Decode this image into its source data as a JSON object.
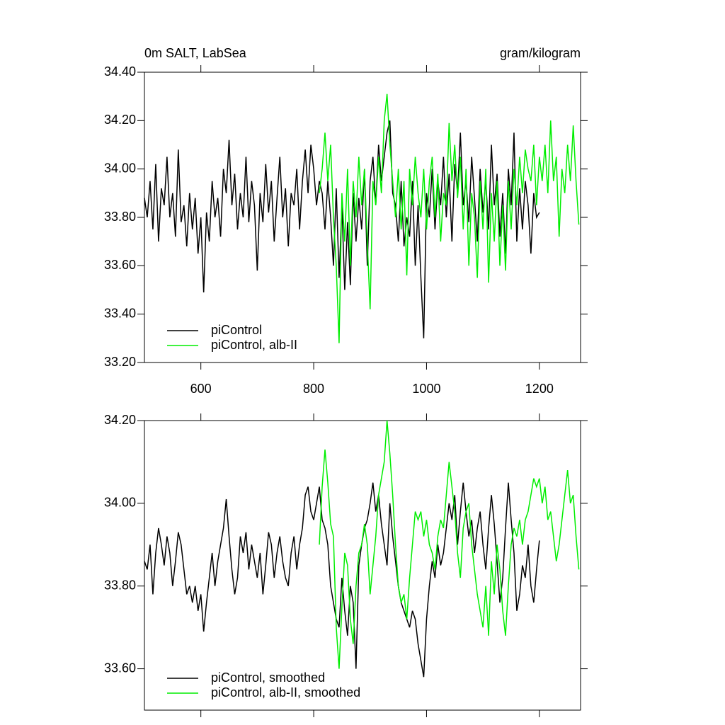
{
  "chart_data": [
    {
      "type": "line",
      "title": "0m SALT, LabSea",
      "subtitle": "gram/kilogram",
      "xlim": [
        500,
        1273
      ],
      "xticks": [
        600,
        800,
        1000,
        1200
      ],
      "ylim": [
        33.2,
        34.4
      ],
      "yticks": [
        {
          "value": 33.2,
          "label": "33.20"
        },
        {
          "value": 33.4,
          "label": "33.40"
        },
        {
          "value": 33.6,
          "label": "33.60"
        },
        {
          "value": 33.8,
          "label": "33.80"
        },
        {
          "value": 34.0,
          "label": "34.00"
        },
        {
          "value": 34.2,
          "label": "34.20"
        },
        {
          "value": 34.4,
          "label": "34.40"
        }
      ],
      "legend": "lower left",
      "series": [
        {
          "name": "piControl",
          "color": "#000000",
          "x": [
            500,
            505,
            510,
            515,
            520,
            525,
            530,
            535,
            540,
            545,
            550,
            555,
            560,
            565,
            570,
            575,
            580,
            585,
            590,
            595,
            600,
            605,
            610,
            615,
            620,
            625,
            630,
            635,
            640,
            645,
            650,
            655,
            660,
            665,
            670,
            675,
            680,
            685,
            690,
            695,
            700,
            705,
            710,
            715,
            720,
            725,
            730,
            735,
            740,
            745,
            750,
            755,
            760,
            765,
            770,
            775,
            780,
            785,
            790,
            795,
            800,
            805,
            810,
            815,
            820,
            825,
            830,
            835,
            840,
            845,
            850,
            855,
            860,
            865,
            870,
            875,
            880,
            885,
            890,
            895,
            900,
            905,
            910,
            915,
            920,
            925,
            930,
            935,
            940,
            945,
            950,
            955,
            960,
            965,
            970,
            975,
            980,
            985,
            990,
            995,
            1000,
            1005,
            1010,
            1015,
            1020,
            1025,
            1030,
            1035,
            1040,
            1045,
            1050,
            1055,
            1060,
            1065,
            1070,
            1075,
            1080,
            1085,
            1090,
            1095,
            1100,
            1105,
            1110,
            1115,
            1120,
            1125,
            1130,
            1135,
            1140,
            1145,
            1150,
            1155,
            1160,
            1165,
            1170,
            1175,
            1180,
            1185,
            1190,
            1195,
            1200
          ],
          "values": [
            33.88,
            33.8,
            33.95,
            33.75,
            34.02,
            33.7,
            33.92,
            33.85,
            34.05,
            33.8,
            33.9,
            33.72,
            34.08,
            33.78,
            33.85,
            33.68,
            33.9,
            33.75,
            33.88,
            33.65,
            33.8,
            33.49,
            33.82,
            33.7,
            33.95,
            33.8,
            33.88,
            33.72,
            34.0,
            33.9,
            34.12,
            33.85,
            33.98,
            33.75,
            33.9,
            33.8,
            34.05,
            33.78,
            33.95,
            33.85,
            33.58,
            33.9,
            33.78,
            34.02,
            33.82,
            33.95,
            33.7,
            33.88,
            34.05,
            33.8,
            33.92,
            33.68,
            33.9,
            33.85,
            34.0,
            33.75,
            33.95,
            34.08,
            33.9,
            34.1,
            34.0,
            33.85,
            33.95,
            33.9,
            33.75,
            33.95,
            33.8,
            33.6,
            33.92,
            33.55,
            33.85,
            33.5,
            33.78,
            33.52,
            33.9,
            33.7,
            33.88,
            33.75,
            34.0,
            33.6,
            33.95,
            34.05,
            33.85,
            34.1,
            33.95,
            34.05,
            34.15,
            34.2,
            33.9,
            33.85,
            33.7,
            33.95,
            33.68,
            33.8,
            33.72,
            33.95,
            33.6,
            33.85,
            33.55,
            33.3,
            33.9,
            33.8,
            34.0,
            33.75,
            33.95,
            33.85,
            34.05,
            33.8,
            33.98,
            33.7,
            34.02,
            33.9,
            34.15,
            33.85,
            33.95,
            33.78,
            34.05,
            33.88,
            33.7,
            34.0,
            33.82,
            33.95,
            33.75,
            34.1,
            33.85,
            33.98,
            33.72,
            33.9,
            33.65,
            34.0,
            33.85,
            34.15,
            33.7,
            33.92,
            33.75,
            33.95,
            33.85,
            33.65,
            33.9,
            33.8,
            33.82
          ]
        },
        {
          "name": "piControl, alb-II",
          "color": "#00ee00",
          "x": [
            810,
            815,
            820,
            825,
            830,
            835,
            840,
            845,
            850,
            855,
            860,
            865,
            870,
            875,
            880,
            885,
            890,
            895,
            900,
            905,
            910,
            915,
            920,
            925,
            930,
            935,
            940,
            945,
            950,
            955,
            960,
            965,
            970,
            975,
            980,
            985,
            990,
            995,
            1000,
            1005,
            1010,
            1015,
            1020,
            1025,
            1030,
            1035,
            1040,
            1045,
            1050,
            1055,
            1060,
            1065,
            1070,
            1075,
            1080,
            1085,
            1090,
            1095,
            1100,
            1105,
            1110,
            1115,
            1120,
            1125,
            1130,
            1135,
            1140,
            1145,
            1150,
            1155,
            1160,
            1165,
            1170,
            1175,
            1180,
            1185,
            1190,
            1195,
            1200,
            1205,
            1210,
            1215,
            1220,
            1225,
            1230,
            1235,
            1240,
            1245,
            1250,
            1255,
            1260,
            1265,
            1270
          ],
          "values": [
            33.9,
            34.0,
            34.15,
            33.95,
            34.1,
            33.8,
            33.6,
            33.28,
            33.9,
            33.7,
            34.0,
            33.6,
            33.95,
            33.8,
            34.05,
            33.85,
            34.0,
            33.7,
            33.42,
            33.95,
            33.85,
            34.05,
            33.9,
            34.2,
            34.31,
            34.1,
            33.95,
            33.8,
            34.0,
            33.75,
            33.95,
            33.56,
            34.0,
            33.85,
            34.05,
            33.9,
            33.8,
            34.0,
            33.75,
            33.95,
            34.05,
            33.8,
            33.98,
            33.7,
            33.9,
            33.85,
            34.19,
            33.95,
            34.1,
            33.88,
            34.05,
            33.75,
            34.0,
            33.6,
            33.9,
            33.8,
            33.55,
            33.95,
            33.75,
            34.0,
            33.53,
            33.9,
            33.7,
            33.95,
            33.6,
            33.85,
            33.58,
            33.95,
            33.75,
            34.0,
            33.85,
            34.05,
            33.9,
            34.08,
            34.0,
            33.95,
            34.1,
            33.85,
            34.05,
            33.95,
            34.1,
            33.9,
            34.2,
            33.95,
            34.05,
            33.72,
            34.0,
            33.9,
            34.1,
            33.95,
            34.18,
            33.95,
            33.77
          ]
        }
      ]
    },
    {
      "type": "line",
      "xlim": [
        500,
        1273
      ],
      "xticks": [
        600,
        800,
        1000,
        1200
      ],
      "xtick_labels": false,
      "ylim": [
        33.5,
        34.2
      ],
      "yticks": [
        {
          "value": 33.6,
          "label": "33.60"
        },
        {
          "value": 33.8,
          "label": "33.80"
        },
        {
          "value": 34.0,
          "label": "34.00"
        },
        {
          "value": 34.2,
          "label": "34.20"
        }
      ],
      "legend": "lower left",
      "series": [
        {
          "name": "piControl, smoothed",
          "color": "#000000",
          "x": [
            500,
            505,
            510,
            515,
            520,
            525,
            530,
            535,
            540,
            545,
            550,
            555,
            560,
            565,
            570,
            575,
            580,
            585,
            590,
            595,
            600,
            605,
            610,
            615,
            620,
            625,
            630,
            635,
            640,
            645,
            650,
            655,
            660,
            665,
            670,
            675,
            680,
            685,
            690,
            695,
            700,
            705,
            710,
            715,
            720,
            725,
            730,
            735,
            740,
            745,
            750,
            755,
            760,
            765,
            770,
            775,
            780,
            785,
            790,
            795,
            800,
            805,
            810,
            815,
            820,
            825,
            830,
            835,
            840,
            845,
            850,
            855,
            860,
            865,
            870,
            875,
            880,
            885,
            890,
            895,
            900,
            905,
            910,
            915,
            920,
            925,
            930,
            935,
            940,
            945,
            950,
            955,
            960,
            965,
            970,
            975,
            980,
            985,
            990,
            995,
            1000,
            1005,
            1010,
            1015,
            1020,
            1025,
            1030,
            1035,
            1040,
            1045,
            1050,
            1055,
            1060,
            1065,
            1070,
            1075,
            1080,
            1085,
            1090,
            1095,
            1100,
            1105,
            1110,
            1115,
            1120,
            1125,
            1130,
            1135,
            1140,
            1145,
            1150,
            1155,
            1160,
            1165,
            1170,
            1175,
            1180,
            1185,
            1190,
            1195,
            1200
          ],
          "values": [
            33.86,
            33.84,
            33.9,
            33.78,
            33.88,
            33.94,
            33.9,
            33.85,
            33.92,
            33.88,
            33.8,
            33.86,
            33.93,
            33.9,
            33.84,
            33.78,
            33.8,
            33.76,
            33.8,
            33.74,
            33.78,
            33.69,
            33.76,
            33.82,
            33.88,
            33.8,
            33.86,
            33.9,
            33.94,
            34.01,
            33.92,
            33.84,
            33.78,
            33.82,
            33.92,
            33.88,
            33.93,
            33.84,
            33.9,
            33.86,
            33.82,
            33.88,
            33.78,
            33.85,
            33.93,
            33.9,
            33.82,
            33.88,
            33.92,
            33.86,
            33.82,
            33.8,
            33.88,
            33.92,
            33.84,
            33.9,
            33.94,
            34.02,
            34.04,
            33.98,
            33.96,
            34.0,
            34.04,
            33.96,
            33.94,
            33.9,
            33.8,
            33.76,
            33.72,
            33.7,
            33.82,
            33.74,
            33.68,
            33.8,
            33.76,
            33.6,
            33.85,
            33.9,
            33.94,
            33.96,
            34.0,
            34.05,
            33.98,
            34.02,
            33.95,
            33.9,
            33.85,
            34.0,
            33.92,
            33.86,
            33.8,
            33.76,
            33.74,
            33.72,
            33.7,
            33.74,
            33.72,
            33.66,
            33.62,
            33.58,
            33.72,
            33.8,
            33.86,
            33.82,
            33.9,
            33.85,
            33.88,
            33.94,
            34.0,
            33.96,
            34.02,
            33.9,
            33.98,
            34.05,
            33.98,
            33.92,
            33.96,
            33.88,
            33.94,
            33.98,
            33.9,
            33.84,
            33.94,
            34.02,
            33.95,
            33.86,
            33.76,
            33.82,
            33.94,
            34.05,
            33.96,
            33.88,
            33.74,
            33.78,
            33.85,
            33.82,
            33.9,
            33.8,
            33.76,
            33.84,
            33.91
          ]
        },
        {
          "name": "piControl, alb-II, smoothed",
          "color": "#00ee00",
          "x": [
            810,
            815,
            820,
            825,
            830,
            835,
            840,
            845,
            850,
            855,
            860,
            865,
            870,
            875,
            880,
            885,
            890,
            895,
            900,
            905,
            910,
            915,
            920,
            925,
            930,
            935,
            940,
            945,
            950,
            955,
            960,
            965,
            970,
            975,
            980,
            985,
            990,
            995,
            1000,
            1005,
            1010,
            1015,
            1020,
            1025,
            1030,
            1035,
            1040,
            1045,
            1050,
            1055,
            1060,
            1065,
            1070,
            1075,
            1080,
            1085,
            1090,
            1095,
            1100,
            1105,
            1110,
            1115,
            1120,
            1125,
            1130,
            1135,
            1140,
            1145,
            1150,
            1155,
            1160,
            1165,
            1170,
            1175,
            1180,
            1185,
            1190,
            1195,
            1200,
            1205,
            1210,
            1215,
            1220,
            1225,
            1230,
            1235,
            1240,
            1245,
            1250,
            1255,
            1260,
            1265,
            1270
          ],
          "values": [
            33.9,
            34.04,
            34.13,
            34.05,
            33.95,
            33.92,
            33.7,
            33.6,
            33.75,
            33.88,
            33.85,
            33.72,
            33.66,
            33.8,
            33.88,
            33.9,
            33.95,
            33.9,
            33.78,
            33.85,
            33.92,
            34.02,
            34.06,
            34.1,
            34.2,
            34.12,
            34.02,
            33.9,
            33.8,
            33.76,
            33.78,
            33.72,
            33.82,
            33.9,
            33.98,
            33.96,
            33.98,
            33.92,
            33.96,
            33.9,
            33.88,
            33.84,
            33.92,
            33.96,
            33.94,
            34.02,
            34.1,
            34.04,
            33.98,
            33.88,
            33.82,
            33.94,
            33.98,
            34.0,
            33.9,
            33.84,
            33.78,
            33.74,
            33.7,
            33.8,
            33.68,
            33.86,
            33.78,
            33.9,
            33.84,
            33.74,
            33.68,
            33.8,
            33.9,
            33.94,
            33.92,
            33.96,
            33.9,
            33.96,
            33.98,
            34.02,
            34.06,
            34.04,
            34.06,
            34.0,
            34.04,
            33.96,
            33.98,
            33.92,
            33.86,
            33.9,
            33.96,
            34.02,
            34.08,
            34.0,
            34.02,
            33.92,
            33.84
          ]
        }
      ]
    }
  ]
}
